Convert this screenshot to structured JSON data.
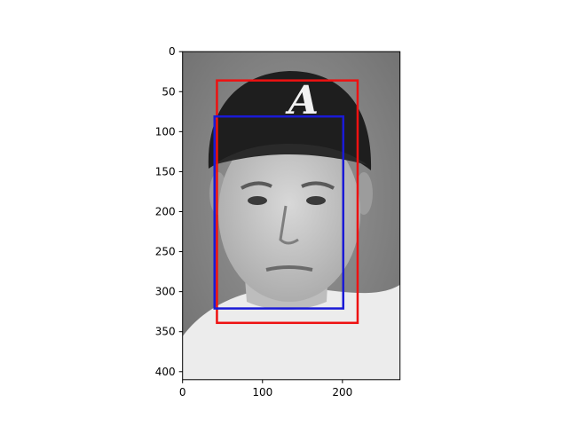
{
  "figure": {
    "image_extent": {
      "x": [
        0,
        272
      ],
      "y": [
        410,
        0
      ]
    },
    "x_ticks": [
      0,
      100,
      200
    ],
    "y_ticks": [
      0,
      50,
      100,
      150,
      200,
      250,
      300,
      350,
      400
    ],
    "x_tick_labels": [
      "0",
      "100",
      "200"
    ],
    "y_tick_labels": [
      "0",
      "50",
      "100",
      "150",
      "200",
      "250",
      "300",
      "350",
      "400"
    ]
  },
  "boxes": [
    {
      "name": "red-bounding-box",
      "color": "#ee1111",
      "x0": 43,
      "y0": 36,
      "x1": 219,
      "y1": 339
    },
    {
      "name": "blue-bounding-box",
      "color": "#1a1ad6",
      "x0": 40,
      "y0": 81,
      "x1": 201,
      "y1": 321
    }
  ]
}
